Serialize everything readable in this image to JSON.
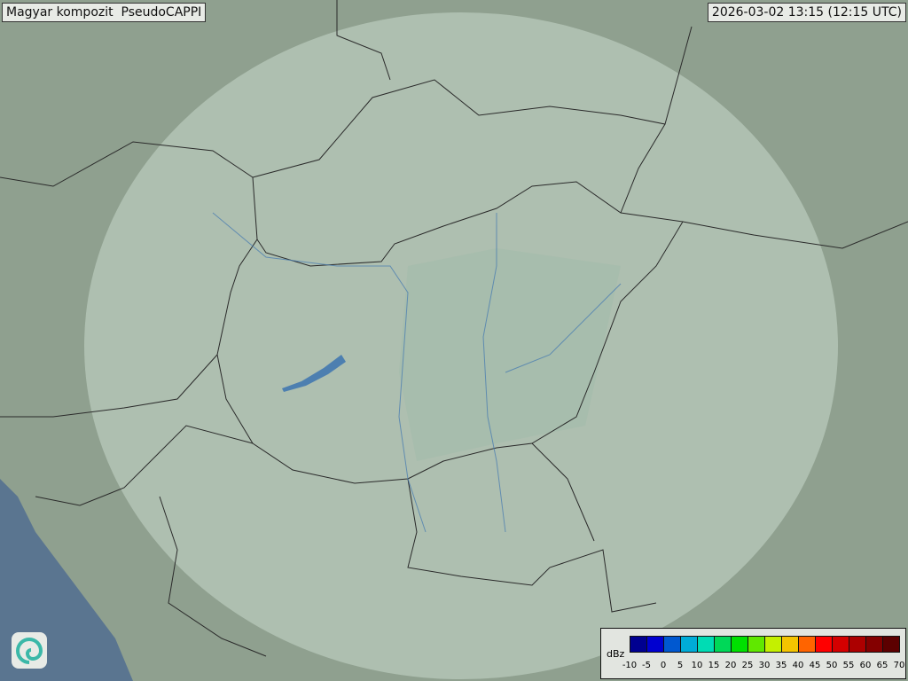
{
  "header": {
    "title": "Magyar kompozit  PseudoCAPPI",
    "timestamp": "2026-03-02 13:15 (12:15 UTC)"
  },
  "map": {
    "land_color": "#8fa08f",
    "sea_color": "#5a7590",
    "coverage_color": "#c8d8cc",
    "border_color": "#2a2a2a",
    "river_color": "#4d7fb0",
    "logo_icon": "swirl-logo-icon"
  },
  "legend": {
    "unit": "dBz",
    "ticks": [
      "-10",
      "-5",
      "0",
      "5",
      "10",
      "15",
      "20",
      "25",
      "30",
      "35",
      "40",
      "45",
      "50",
      "55",
      "60",
      "65",
      "70"
    ],
    "colors": [
      "#000090",
      "#0000d0",
      "#0058d0",
      "#00acd8",
      "#00dcb4",
      "#00d858",
      "#00e000",
      "#60e800",
      "#c4f000",
      "#f4c400",
      "#ff6400",
      "#ff0000",
      "#d40000",
      "#ac0000",
      "#840000",
      "#5c0000"
    ]
  }
}
